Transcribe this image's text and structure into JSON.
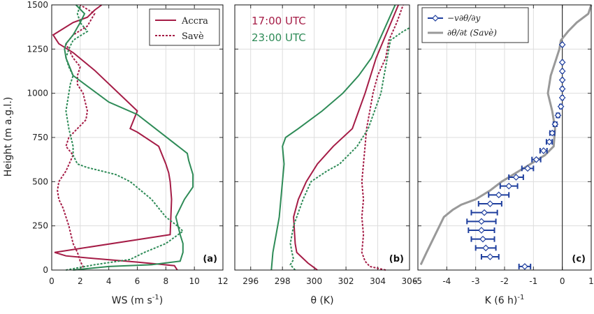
{
  "colors": {
    "accra": "#a51c46",
    "save": "#2e8b57",
    "advection": "#1f3f9e",
    "tendency": "#999999",
    "grid": "#dddddd",
    "axis": "#333333"
  },
  "y_axis": {
    "label": "Height (m a.g.l.)",
    "ticks": [
      "0",
      "250",
      "500",
      "750",
      "1000",
      "1250",
      "1500"
    ]
  },
  "chart_data": [
    {
      "type": "line",
      "panel_label": "(a)",
      "xlabel": "WS (m s",
      "xlabel_sup": "-1",
      "xlabel_tail": ")",
      "xlim": [
        0,
        12
      ],
      "ylim": [
        0,
        1500
      ],
      "xticks": [
        "0",
        "2",
        "4",
        "6",
        "8",
        "10",
        "12"
      ],
      "legend": {
        "placement": "top-right",
        "accra": "Accra",
        "save": "Savè"
      },
      "series": [
        {
          "site": "accra",
          "time": "17:00",
          "style": "solid",
          "points": [
            [
              8.8,
              0
            ],
            [
              8.6,
              25
            ],
            [
              6,
              45
            ],
            [
              3,
              65
            ],
            [
              1,
              80
            ],
            [
              0.2,
              100
            ],
            [
              8.3,
              200
            ],
            [
              8.4,
              400
            ],
            [
              8.3,
              500
            ],
            [
              8.2,
              550
            ],
            [
              8.0,
              600
            ],
            [
              7.5,
              700
            ],
            [
              6.0,
              780
            ],
            [
              5.5,
              800
            ],
            [
              6.0,
              900
            ],
            [
              3.0,
              1130
            ],
            [
              1.5,
              1230
            ],
            [
              0.5,
              1280
            ],
            [
              0.1,
              1330
            ],
            [
              0.5,
              1350
            ],
            [
              1.5,
              1400
            ],
            [
              2.5,
              1430
            ],
            [
              3.0,
              1470
            ],
            [
              3.5,
              1500
            ]
          ]
        },
        {
          "site": "accra",
          "time": "23:00",
          "style": "dashed",
          "points": [
            [
              2.0,
              0
            ],
            [
              2.2,
              20
            ],
            [
              2.0,
              50
            ],
            [
              1.8,
              100
            ],
            [
              1.5,
              150
            ],
            [
              1.2,
              250
            ],
            [
              1.0,
              300
            ],
            [
              0.8,
              350
            ],
            [
              0.5,
              400
            ],
            [
              0.4,
              450
            ],
            [
              0.5,
              500
            ],
            [
              1.0,
              560
            ],
            [
              1.5,
              650
            ],
            [
              1.0,
              700
            ],
            [
              1.2,
              750
            ],
            [
              1.8,
              800
            ],
            [
              2.4,
              850
            ],
            [
              2.5,
              900
            ],
            [
              2.2,
              1000
            ],
            [
              1.8,
              1050
            ],
            [
              1.8,
              1100
            ],
            [
              2.0,
              1150
            ],
            [
              1.5,
              1200
            ],
            [
              1.0,
              1280
            ],
            [
              1.5,
              1330
            ],
            [
              2.5,
              1380
            ],
            [
              3.0,
              1450
            ],
            [
              2.0,
              1500
            ]
          ]
        },
        {
          "site": "save",
          "time": "17:00",
          "style": "solid",
          "points": [
            [
              1.5,
              0
            ],
            [
              4.0,
              20
            ],
            [
              7.0,
              30
            ],
            [
              9.0,
              50
            ],
            [
              9.2,
              100
            ],
            [
              9.2,
              150
            ],
            [
              9.0,
              200
            ],
            [
              8.7,
              300
            ],
            [
              9.3,
              400
            ],
            [
              9.9,
              470
            ],
            [
              9.9,
              540
            ],
            [
              9.6,
              620
            ],
            [
              9.5,
              660
            ],
            [
              6.0,
              880
            ],
            [
              4.0,
              950
            ],
            [
              1.5,
              1100
            ],
            [
              1.0,
              1200
            ],
            [
              0.9,
              1250
            ],
            [
              1.0,
              1280
            ],
            [
              1.5,
              1330
            ],
            [
              2.0,
              1400
            ],
            [
              2.3,
              1450
            ],
            [
              1.7,
              1500
            ]
          ]
        },
        {
          "site": "save",
          "time": "23:00",
          "style": "dashed",
          "points": [
            [
              1.0,
              0
            ],
            [
              3.0,
              30
            ],
            [
              5.5,
              60
            ],
            [
              6.5,
              100
            ],
            [
              8.0,
              150
            ],
            [
              9.2,
              220
            ],
            [
              8.8,
              250
            ],
            [
              8.0,
              300
            ],
            [
              7.0,
              400
            ],
            [
              5.5,
              500
            ],
            [
              4.5,
              540
            ],
            [
              3.5,
              560
            ],
            [
              2.5,
              580
            ],
            [
              1.8,
              600
            ],
            [
              1.5,
              650
            ],
            [
              1.5,
              700
            ],
            [
              1.2,
              800
            ],
            [
              1.0,
              900
            ],
            [
              1.2,
              1000
            ],
            [
              1.3,
              1050
            ],
            [
              1.5,
              1100
            ],
            [
              1.2,
              1150
            ],
            [
              1.0,
              1200
            ],
            [
              1.2,
              1250
            ],
            [
              1.5,
              1300
            ],
            [
              2.5,
              1350
            ],
            [
              2.0,
              1400
            ],
            [
              1.8,
              1450
            ],
            [
              2.0,
              1500
            ]
          ]
        }
      ]
    },
    {
      "type": "line",
      "panel_label": "(b)",
      "xlabel": "θ (K)",
      "xlim": [
        295,
        306
      ],
      "ylim": [
        0,
        1500
      ],
      "xticks": [
        "296",
        "298",
        "300",
        "302",
        "304",
        "306"
      ],
      "legend": {
        "placement": "top-left",
        "t17": "17:00 UTC",
        "t23": "23:00 UTC"
      },
      "series": [
        {
          "site": "accra",
          "time": "17:00",
          "style": "solid",
          "points": [
            [
              300.2,
              0
            ],
            [
              299.6,
              40
            ],
            [
              298.9,
              100
            ],
            [
              298.8,
              150
            ],
            [
              298.7,
              300
            ],
            [
              299.0,
              400
            ],
            [
              299.5,
              500
            ],
            [
              300.2,
              600
            ],
            [
              301.2,
              700
            ],
            [
              302.4,
              800
            ],
            [
              303.2,
              1000
            ],
            [
              303.9,
              1200
            ],
            [
              304.6,
              1350
            ],
            [
              305.3,
              1500
            ]
          ]
        },
        {
          "site": "accra",
          "time": "23:00",
          "style": "dashed",
          "points": [
            [
              304.5,
              0
            ],
            [
              303.5,
              20
            ],
            [
              303.2,
              50
            ],
            [
              303.0,
              100
            ],
            [
              303.1,
              200
            ],
            [
              303.0,
              300
            ],
            [
              303.1,
              400
            ],
            [
              303.0,
              500
            ],
            [
              303.1,
              600
            ],
            [
              303.2,
              700
            ],
            [
              303.3,
              800
            ],
            [
              303.5,
              900
            ],
            [
              303.7,
              1000
            ],
            [
              304.0,
              1100
            ],
            [
              304.5,
              1200
            ],
            [
              304.7,
              1300
            ],
            [
              305.2,
              1400
            ],
            [
              305.6,
              1500
            ]
          ]
        },
        {
          "site": "save",
          "time": "17:00",
          "style": "solid",
          "points": [
            [
              297.3,
              0
            ],
            [
              297.4,
              100
            ],
            [
              297.6,
              200
            ],
            [
              297.8,
              300
            ],
            [
              297.9,
              400
            ],
            [
              298.0,
              500
            ],
            [
              298.1,
              600
            ],
            [
              298.0,
              700
            ],
            [
              298.2,
              750
            ],
            [
              299.0,
              800
            ],
            [
              300.5,
              900
            ],
            [
              301.8,
              1000
            ],
            [
              302.8,
              1100
            ],
            [
              303.6,
              1200
            ],
            [
              304.1,
              1300
            ],
            [
              304.6,
              1400
            ],
            [
              305.1,
              1500
            ]
          ]
        },
        {
          "site": "save",
          "time": "23:00",
          "style": "dashed",
          "points": [
            [
              298.8,
              0
            ],
            [
              298.5,
              30
            ],
            [
              298.7,
              60
            ],
            [
              298.6,
              100
            ],
            [
              298.5,
              150
            ],
            [
              298.6,
              200
            ],
            [
              298.7,
              250
            ],
            [
              298.9,
              300
            ],
            [
              299.3,
              400
            ],
            [
              299.8,
              500
            ],
            [
              300.8,
              560
            ],
            [
              301.6,
              600
            ],
            [
              302.7,
              700
            ],
            [
              303.4,
              800
            ],
            [
              303.8,
              900
            ],
            [
              304.2,
              1000
            ],
            [
              304.4,
              1100
            ],
            [
              304.6,
              1200
            ],
            [
              304.8,
              1300
            ],
            [
              305.6,
              1350
            ],
            [
              306,
              1370
            ]
          ]
        }
      ]
    },
    {
      "type": "line",
      "panel_label": "(c)",
      "xlabel": "K (6 h)",
      "xlabel_sup": "-1",
      "xlim": [
        -5,
        1
      ],
      "ylim": [
        0,
        1500
      ],
      "xticks": [
        "-5",
        "-4",
        "-3",
        "-2",
        "-1",
        "0",
        "1"
      ],
      "legend": {
        "placement": "top-right",
        "advection": "−v∂θ/∂y",
        "tendency": "∂θ/∂t (Savè)"
      },
      "tendency_points": [
        [
          -4.9,
          30
        ],
        [
          -4.7,
          100
        ],
        [
          -4.4,
          200
        ],
        [
          -4.1,
          300
        ],
        [
          -3.8,
          340
        ],
        [
          -3.5,
          370
        ],
        [
          -3.0,
          400
        ],
        [
          -2.5,
          450
        ],
        [
          -2.1,
          500
        ],
        [
          -1.6,
          550
        ],
        [
          -1.1,
          600
        ],
        [
          -0.6,
          650
        ],
        [
          -0.3,
          700
        ],
        [
          -0.25,
          800
        ],
        [
          -0.35,
          900
        ],
        [
          -0.5,
          1000
        ],
        [
          -0.4,
          1100
        ],
        [
          -0.2,
          1200
        ],
        [
          -0.1,
          1250
        ],
        [
          -0.05,
          1300
        ],
        [
          0.2,
          1350
        ],
        [
          0.5,
          1400
        ],
        [
          0.9,
          1450
        ],
        [
          1.0,
          1500
        ]
      ],
      "advection_points": [
        {
          "y": 20,
          "x": -1.3,
          "err": 0.2
        },
        {
          "y": 75,
          "x": -2.5,
          "err": 0.3
        },
        {
          "y": 125,
          "x": -2.65,
          "err": 0.35
        },
        {
          "y": 175,
          "x": -2.75,
          "err": 0.4
        },
        {
          "y": 225,
          "x": -2.8,
          "err": 0.45
        },
        {
          "y": 275,
          "x": -2.8,
          "err": 0.5
        },
        {
          "y": 325,
          "x": -2.7,
          "err": 0.45
        },
        {
          "y": 375,
          "x": -2.5,
          "err": 0.4
        },
        {
          "y": 425,
          "x": -2.2,
          "err": 0.35
        },
        {
          "y": 475,
          "x": -1.85,
          "err": 0.3
        },
        {
          "y": 525,
          "x": -1.6,
          "err": 0.25
        },
        {
          "y": 575,
          "x": -1.2,
          "err": 0.2
        },
        {
          "y": 625,
          "x": -0.9,
          "err": 0.15
        },
        {
          "y": 675,
          "x": -0.65,
          "err": 0.12
        },
        {
          "y": 725,
          "x": -0.45,
          "err": 0.1
        },
        {
          "y": 775,
          "x": -0.35,
          "err": 0.08
        },
        {
          "y": 825,
          "x": -0.25,
          "err": 0.06
        },
        {
          "y": 875,
          "x": -0.15,
          "err": 0.05
        },
        {
          "y": 925,
          "x": -0.05,
          "err": 0.04
        },
        {
          "y": 975,
          "x": 0.0,
          "err": 0.03
        },
        {
          "y": 1025,
          "x": 0.0,
          "err": 0.03
        },
        {
          "y": 1075,
          "x": 0.0,
          "err": 0.02
        },
        {
          "y": 1125,
          "x": 0.0,
          "err": 0.02
        },
        {
          "y": 1175,
          "x": 0.0,
          "err": 0.02
        },
        {
          "y": 1275,
          "x": 0.0,
          "err": 0.02
        }
      ]
    }
  ]
}
